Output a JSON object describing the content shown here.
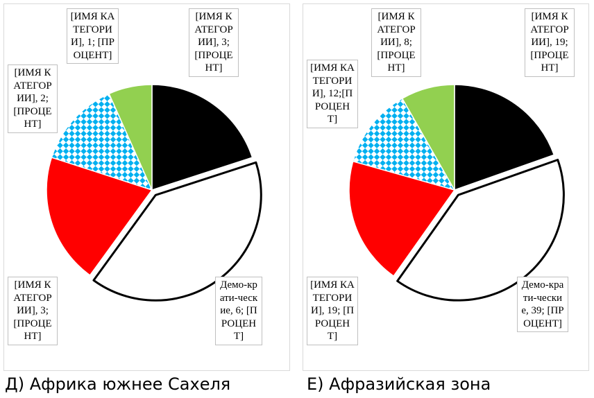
{
  "colors": {
    "black_slice": "#000000",
    "white_slice": "#ffffff",
    "red_slice": "#ff0000",
    "pattern_slice": "#00b0f0",
    "green_slice": "#92d050",
    "label_border": "#bfbfbf",
    "panel_border": "#d9d9d9"
  },
  "chart_data": [
    {
      "type": "pie",
      "title": "Д) Африка южнее Сахеля",
      "slices": [
        {
          "name": "[ИМЯ КАТЕГОРИИ]",
          "value": 3,
          "label": "[ИМЯ КАТЕГОРИИ], 3; [ПРОЦЕНТ]",
          "fill": "black"
        },
        {
          "name": "Демократические",
          "value": 6,
          "label": "Демо-крати-ческие, 6; [ПРОЦЕНТ]",
          "fill": "white"
        },
        {
          "name": "[ИМЯ КАТЕГОРИИ]",
          "value": 3,
          "label": "[ИМЯ КАТЕГОРИИ], 3; [ПРОЦЕНТ]",
          "fill": "red"
        },
        {
          "name": "[ИМЯ КАТЕГОРИИ]",
          "value": 2,
          "label": "[ИМЯ КАТЕГОРИИ], 2; [ПРОЦЕНТ]",
          "fill": "pattern"
        },
        {
          "name": "[ИМЯ КАТЕГОРИИ]",
          "value": 1,
          "label": "[ИМЯ КАТЕГОРИИ], 1; [ПРОЦЕНТ]",
          "fill": "green"
        }
      ]
    },
    {
      "type": "pie",
      "title": "Е) Афразийская зона",
      "slices": [
        {
          "name": "[ИМЯ КАТЕГОРИИ]",
          "value": 19,
          "label": "[ИМЯ КАТЕГОРИИ], 19; [ПРОЦЕНТ]",
          "fill": "black"
        },
        {
          "name": "Демократические",
          "value": 39,
          "label": "Демо-крати-ческие, 39; [ПРОЦЕНТ]",
          "fill": "white"
        },
        {
          "name": "[ИМЯ КАТЕГОРИИ]",
          "value": 19,
          "label": "[ИМЯ КАТЕГОРИИ], 19; [ПРОЦЕНТ]",
          "fill": "red"
        },
        {
          "name": "[ИМЯ КАТЕГОРИИ]",
          "value": 12,
          "label": "[ИМЯ КАТЕГОРИИ], 12;[ПРОЦЕНТ]",
          "fill": "pattern"
        },
        {
          "name": "[ИМЯ КАТЕГОРИИ]",
          "value": 8,
          "label": "[ИМЯ КАТЕГОРИИ], 8; [ПРОЦЕНТ]",
          "fill": "green"
        }
      ]
    }
  ]
}
